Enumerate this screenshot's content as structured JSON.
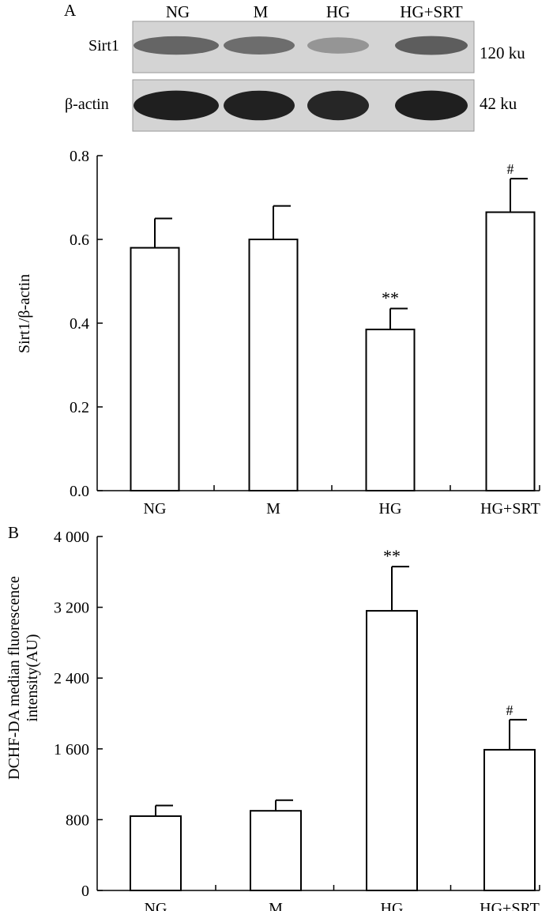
{
  "panel_a": {
    "label": "A",
    "blot": {
      "lanes": [
        "NG",
        "M",
        "HG",
        "HG+SRT"
      ],
      "rows": [
        {
          "name": "Sirt1",
          "size": "120 ku",
          "intensity": [
            0.62,
            0.58,
            0.38,
            0.66
          ]
        },
        {
          "name": "β-actin",
          "size": "42 ku",
          "intensity": [
            0.97,
            0.96,
            0.94,
            0.97
          ]
        }
      ]
    }
  },
  "panel_b": {
    "label": "B"
  },
  "chart_data": [
    {
      "type": "bar",
      "title": "",
      "categories": [
        "NG",
        "M",
        "HG",
        "HG+SRT"
      ],
      "values": [
        0.58,
        0.6,
        0.385,
        0.665
      ],
      "errors": [
        0.07,
        0.08,
        0.05,
        0.08
      ],
      "annotations": [
        "",
        "",
        "**",
        "#"
      ],
      "xlabel": "",
      "ylabel": "Sirt1/β-actin",
      "ylim": [
        0,
        0.8
      ],
      "yticks": [
        0,
        0.2,
        0.4,
        0.6,
        0.8
      ],
      "ytick_labels": [
        "0.0",
        "0.2",
        "0.4",
        "0.6",
        "0.8"
      ]
    },
    {
      "type": "bar",
      "title": "",
      "categories": [
        "NG",
        "M",
        "HG",
        "HG+SRT"
      ],
      "values": [
        840,
        900,
        3160,
        1590
      ],
      "errors": [
        120,
        120,
        500,
        340
      ],
      "annotations": [
        "",
        "",
        "**",
        "#"
      ],
      "xlabel": "",
      "ylabel": "DCHF-DA median fluorescence intensity(AU)",
      "ylabel_lines": [
        "DCHF-DA median fluorescence",
        "intensity(AU)"
      ],
      "ylim": [
        0,
        4000
      ],
      "yticks": [
        0,
        800,
        1600,
        2400,
        3200,
        4000
      ],
      "ytick_labels": [
        "0",
        "800",
        "1 600",
        "2 400",
        "3 200",
        "4 000"
      ]
    }
  ]
}
